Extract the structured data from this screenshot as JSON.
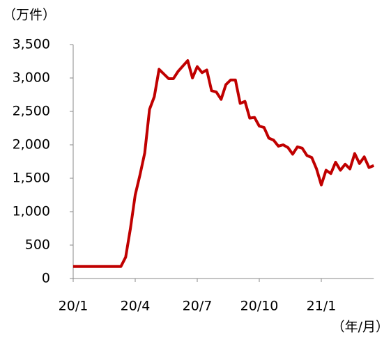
{
  "chart_data": {
    "type": "line",
    "y_unit": "（万件）",
    "x_unit": "（年/月）",
    "categories": [
      "20/1",
      null,
      null,
      null,
      null,
      null,
      null,
      null,
      null,
      null,
      null,
      null,
      null,
      "20/4",
      null,
      null,
      null,
      null,
      null,
      null,
      null,
      null,
      null,
      null,
      null,
      null,
      "20/7",
      null,
      null,
      null,
      null,
      null,
      null,
      null,
      null,
      null,
      null,
      null,
      null,
      "20/10",
      null,
      null,
      null,
      null,
      null,
      null,
      null,
      null,
      null,
      null,
      null,
      null,
      "21/1",
      null,
      null,
      null,
      null,
      null,
      null,
      null,
      null,
      null,
      null,
      null
    ],
    "series": [
      {
        "name": null,
        "color": "#c00000",
        "values": [
          180,
          180,
          180,
          180,
          180,
          180,
          180,
          180,
          180,
          180,
          180,
          320,
          750,
          1250,
          1550,
          1880,
          2530,
          2720,
          3130,
          3060,
          2990,
          2990,
          3100,
          3180,
          3260,
          3000,
          3170,
          3080,
          3120,
          2810,
          2790,
          2680,
          2900,
          2970,
          2970,
          2620,
          2650,
          2400,
          2410,
          2280,
          2260,
          2100,
          2070,
          1980,
          2000,
          1960,
          1860,
          1970,
          1950,
          1840,
          1810,
          1640,
          1400,
          1620,
          1570,
          1740,
          1620,
          1710,
          1640,
          1870,
          1720,
          1820,
          1660,
          1690
        ]
      }
    ],
    "ylim": [
      0,
      3500
    ],
    "yticks": [
      0,
      500,
      {
        "value": 1000,
        "label": "1,000"
      },
      {
        "value": 1500,
        "label": "1,500"
      },
      {
        "value": 2000,
        "label": "2,000"
      },
      {
        "value": 2500,
        "label": "2,500"
      },
      {
        "value": 3000,
        "label": "3,000"
      },
      {
        "value": 3500,
        "label": "3,500"
      }
    ]
  }
}
